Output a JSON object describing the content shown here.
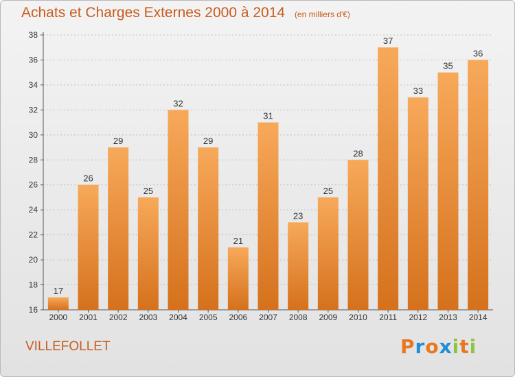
{
  "title": "Achats et Charges Externes 2000 à 2014",
  "subtitle": "(en milliers d'€)",
  "commune": "VILLEFOLLET",
  "logo": {
    "text": "Proxiti",
    "letters": [
      "P",
      "r",
      "o",
      "x",
      "i",
      "t",
      "i"
    ],
    "colors": [
      "#e87722",
      "#1e8fd6",
      "#e87722",
      "#1e8fd6",
      "#8cc63f",
      "#e87722",
      "#8cc63f"
    ]
  },
  "colors": {
    "bar_light": "#f7a95a",
    "bar_dark": "#d5711c",
    "title": "#c85c1e",
    "grid": "#c0c0c0"
  },
  "chart_data": {
    "type": "bar",
    "categories": [
      "2000",
      "2001",
      "2002",
      "2003",
      "2004",
      "2005",
      "2006",
      "2007",
      "2008",
      "2009",
      "2010",
      "2011",
      "2012",
      "2013",
      "2014"
    ],
    "values": [
      17,
      26,
      29,
      25,
      32,
      29,
      21,
      31,
      23,
      25,
      28,
      37,
      33,
      35,
      36
    ],
    "ylim": [
      16,
      38
    ],
    "yticks": [
      16,
      18,
      20,
      22,
      24,
      26,
      28,
      30,
      32,
      34,
      36,
      38
    ],
    "grid": true,
    "data_labels": true
  }
}
